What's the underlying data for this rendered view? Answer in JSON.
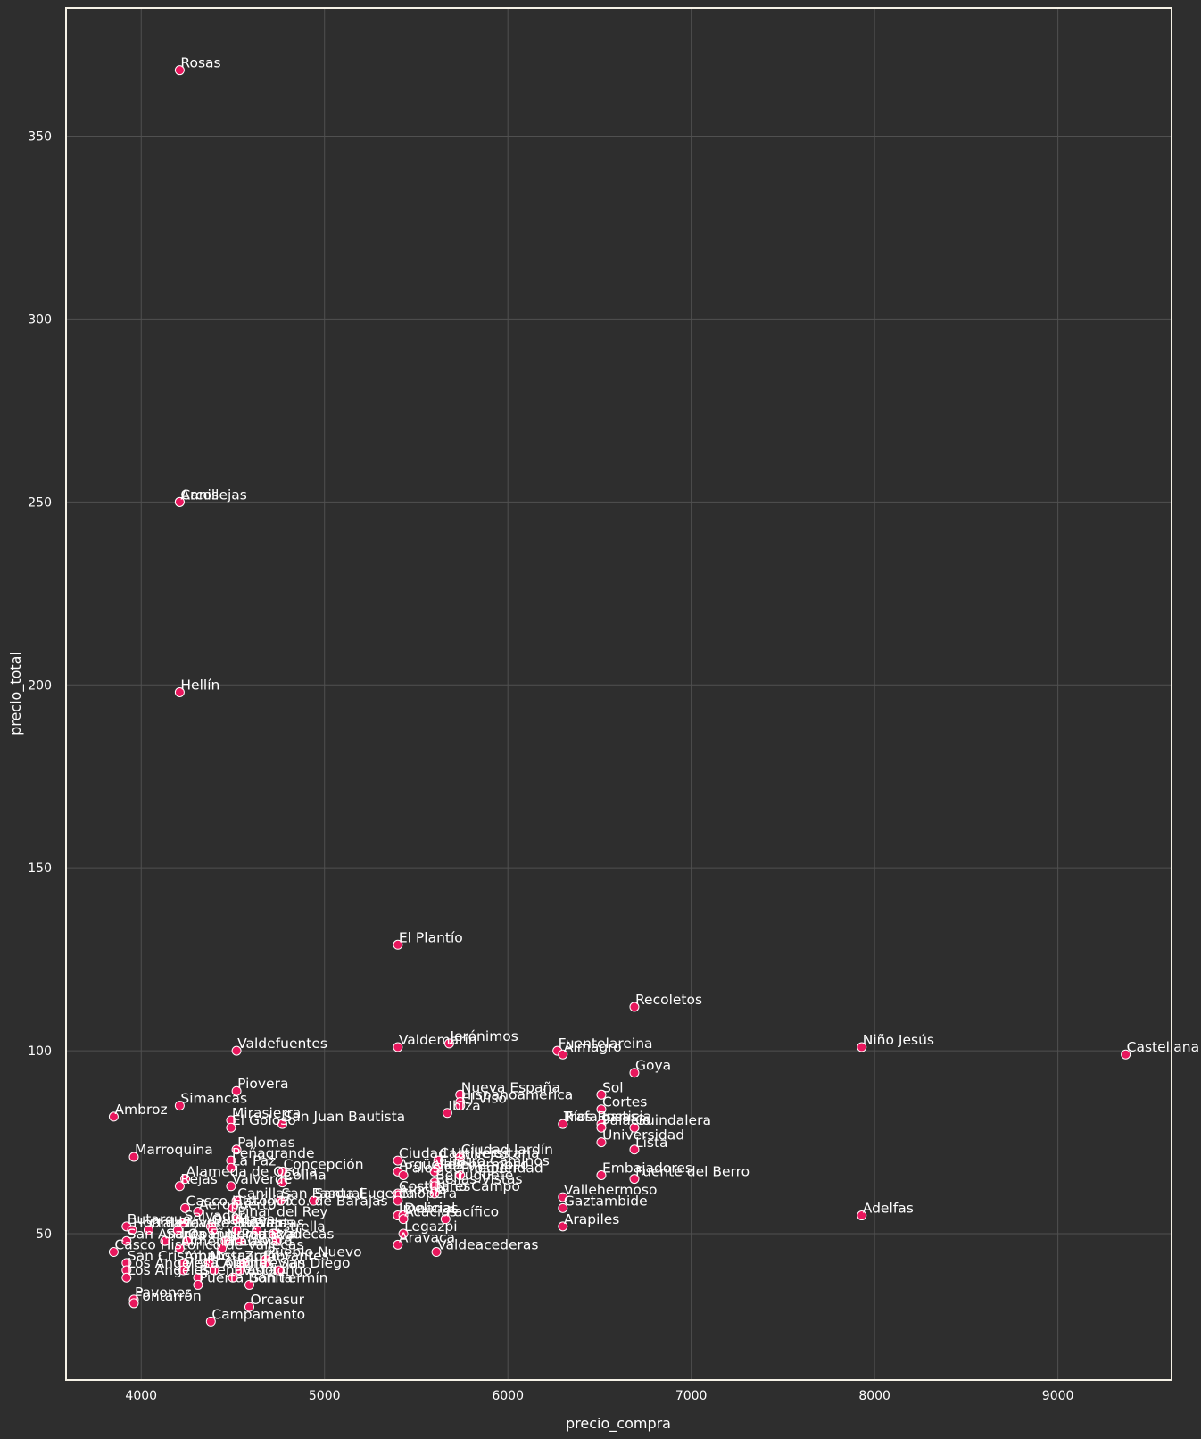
{
  "chart_data": {
    "type": "scatter",
    "title": "",
    "xlabel": "precio_compra",
    "ylabel": "precio_total",
    "xlim": [
      3590,
      9620
    ],
    "ylim": [
      10,
      385
    ],
    "xticks": [
      "4000",
      "5000",
      "6000",
      "7000",
      "8000",
      "9000"
    ],
    "yticks": [
      "50",
      "100",
      "150",
      "200",
      "250",
      "300",
      "350"
    ],
    "grid": true,
    "background": "#2e2e2e",
    "frame_color": "#f5f1e6",
    "grid_color": "#505050",
    "point_color": "#e8175d",
    "point_edge_color": "#ffffff",
    "label_color": "#ffffff",
    "points": [
      {
        "label": "Rosas",
        "x": 4210,
        "y": 368
      },
      {
        "label": "Canillejas",
        "x": 4210,
        "y": 250
      },
      {
        "label": "Arcos",
        "x": 4210,
        "y": 250
      },
      {
        "label": "Hellín",
        "x": 4210,
        "y": 198
      },
      {
        "label": "El Plantío",
        "x": 5400,
        "y": 129
      },
      {
        "label": "Recoletos",
        "x": 6690,
        "y": 112
      },
      {
        "label": "Castellana",
        "x": 9370,
        "y": 99
      },
      {
        "label": "Niño Jesús",
        "x": 7930,
        "y": 101
      },
      {
        "label": "Jerónimos",
        "x": 5680,
        "y": 102
      },
      {
        "label": "Valdemarín",
        "x": 5400,
        "y": 101
      },
      {
        "label": "Valdefuentes",
        "x": 4520,
        "y": 100
      },
      {
        "label": "Fuentelareina",
        "x": 6270,
        "y": 100
      },
      {
        "label": "Almagro",
        "x": 6300,
        "y": 99
      },
      {
        "label": "Goya",
        "x": 6690,
        "y": 94
      },
      {
        "label": "Piovera",
        "x": 4520,
        "y": 89
      },
      {
        "label": "Sol",
        "x": 6510,
        "y": 88
      },
      {
        "label": "Nueva España",
        "x": 5740,
        "y": 88
      },
      {
        "label": "Hispanoamérica",
        "x": 5740,
        "y": 86
      },
      {
        "label": "El Viso",
        "x": 5740,
        "y": 85
      },
      {
        "label": "Simancas",
        "x": 4210,
        "y": 85
      },
      {
        "label": "Cortes",
        "x": 6510,
        "y": 84
      },
      {
        "label": "Ibiza",
        "x": 5670,
        "y": 83
      },
      {
        "label": "Ambroz",
        "x": 3850,
        "y": 82
      },
      {
        "label": "Mirasierra",
        "x": 4490,
        "y": 81
      },
      {
        "label": "El Goloso",
        "x": 4490,
        "y": 79
      },
      {
        "label": "San Juan Bautista",
        "x": 4770,
        "y": 80
      },
      {
        "label": "Trafalgar",
        "x": 6300,
        "y": 80
      },
      {
        "label": "Ríos Rosas",
        "x": 6300,
        "y": 80
      },
      {
        "label": "Justicia",
        "x": 6510,
        "y": 80
      },
      {
        "label": "Palacio",
        "x": 6510,
        "y": 79
      },
      {
        "label": "Guindalera",
        "x": 6690,
        "y": 79
      },
      {
        "label": "Universidad",
        "x": 6510,
        "y": 75
      },
      {
        "label": "Lista",
        "x": 6690,
        "y": 73
      },
      {
        "label": "Palomas",
        "x": 4520,
        "y": 73
      },
      {
        "label": "Marroquina",
        "x": 3960,
        "y": 71
      },
      {
        "label": "Peñagrande",
        "x": 4490,
        "y": 70
      },
      {
        "label": "La Paz",
        "x": 4490,
        "y": 68
      },
      {
        "label": "Ciudad Jardín",
        "x": 5740,
        "y": 71
      },
      {
        "label": "Ciudad Universitaria",
        "x": 5400,
        "y": 70
      },
      {
        "label": "Castillejos",
        "x": 5620,
        "y": 70
      },
      {
        "label": "Cuatro Caminos",
        "x": 5620,
        "y": 68
      },
      {
        "label": "Concepción",
        "x": 4770,
        "y": 67
      },
      {
        "label": "Argüelles",
        "x": 5400,
        "y": 67
      },
      {
        "label": "Vallehermoso",
        "x": 5600,
        "y": 67
      },
      {
        "label": "Embajadores",
        "x": 6510,
        "y": 66
      },
      {
        "label": "Fuente del Berro",
        "x": 6690,
        "y": 65
      },
      {
        "label": "Palos de Moguer",
        "x": 5430,
        "y": 66
      },
      {
        "label": "Prosperidad",
        "x": 5740,
        "y": 66
      },
      {
        "label": "Berruguete",
        "x": 5600,
        "y": 64
      },
      {
        "label": "Alameda de Osuna",
        "x": 4240,
        "y": 65
      },
      {
        "label": "Colina",
        "x": 4770,
        "y": 64
      },
      {
        "label": "Bellas Vistas",
        "x": 5600,
        "y": 63
      },
      {
        "label": "Rejas",
        "x": 4210,
        "y": 63
      },
      {
        "label": "Valverde",
        "x": 4490,
        "y": 63
      },
      {
        "label": "Atocha",
        "x": 5400,
        "y": 60
      },
      {
        "label": "Costillares",
        "x": 5400,
        "y": 61
      },
      {
        "label": "Niño Campo",
        "x": 5600,
        "y": 61
      },
      {
        "label": "Vallehermoso",
        "x": 6300,
        "y": 60
      },
      {
        "label": "Santa Eugenia",
        "x": 4940,
        "y": 59
      },
      {
        "label": "Canillas",
        "x": 4520,
        "y": 59
      },
      {
        "label": "San Pascual",
        "x": 4760,
        "y": 59
      },
      {
        "label": "Chopera",
        "x": 5400,
        "y": 59
      },
      {
        "label": "Casco Histórico",
        "x": 4240,
        "y": 57
      },
      {
        "label": "Aeropuerto",
        "x": 4310,
        "y": 56
      },
      {
        "label": "Casco Hco. de Barajas",
        "x": 4500,
        "y": 57
      },
      {
        "label": "Gaztambide",
        "x": 6300,
        "y": 57
      },
      {
        "label": "Pinar del Rey",
        "x": 4520,
        "y": 54
      },
      {
        "label": "Imperial",
        "x": 5400,
        "y": 55
      },
      {
        "label": "Delicias",
        "x": 5430,
        "y": 55
      },
      {
        "label": "Acacias",
        "x": 5430,
        "y": 54
      },
      {
        "label": "Pacífico",
        "x": 5660,
        "y": 54
      },
      {
        "label": "Adelfas",
        "x": 7930,
        "y": 55
      },
      {
        "label": "Butarque",
        "x": 3920,
        "y": 52
      },
      {
        "label": "Salvador",
        "x": 4230,
        "y": 53
      },
      {
        "label": "Quintana",
        "x": 4380,
        "y": 52
      },
      {
        "label": "Arapiles",
        "x": 6300,
        "y": 52
      },
      {
        "label": "Legazpi",
        "x": 5430,
        "y": 50
      },
      {
        "label": "Hortaleza",
        "x": 3950,
        "y": 51
      },
      {
        "label": "Orcasitas",
        "x": 4040,
        "y": 51
      },
      {
        "label": "Piovera Baja",
        "x": 4200,
        "y": 51
      },
      {
        "label": "Los Rosales",
        "x": 4390,
        "y": 51
      },
      {
        "label": "El Pilar",
        "x": 4520,
        "y": 51
      },
      {
        "label": "Ventas",
        "x": 4630,
        "y": 51
      },
      {
        "label": "Estrella",
        "x": 4720,
        "y": 50
      },
      {
        "label": "San Andrés",
        "x": 3920,
        "y": 48
      },
      {
        "label": "Santa Eugenia B",
        "x": 4130,
        "y": 48
      },
      {
        "label": "Opañel",
        "x": 4250,
        "y": 48
      },
      {
        "label": "Numancia",
        "x": 4460,
        "y": 48
      },
      {
        "label": "Portazgo",
        "x": 4540,
        "y": 48
      },
      {
        "label": "Vallecas",
        "x": 4740,
        "y": 48
      },
      {
        "label": "Aravaca",
        "x": 5400,
        "y": 47
      },
      {
        "label": "Casco Histórico de Vallecas",
        "x": 3850,
        "y": 45
      },
      {
        "label": "Almendrales",
        "x": 4210,
        "y": 46
      },
      {
        "label": "El Calvaro",
        "x": 4440,
        "y": 46
      },
      {
        "label": "Valdeacederas",
        "x": 5610,
        "y": 45
      },
      {
        "label": "Pueblo Nuevo",
        "x": 4680,
        "y": 43
      },
      {
        "label": "San Cristóbal",
        "x": 3920,
        "y": 42
      },
      {
        "label": "Amposta",
        "x": 4230,
        "y": 42
      },
      {
        "label": "Moscardó",
        "x": 4370,
        "y": 42
      },
      {
        "label": "Zofío",
        "x": 4560,
        "y": 42
      },
      {
        "label": "Abrantes",
        "x": 4680,
        "y": 42
      },
      {
        "label": "Los Ángeles",
        "x": 3920,
        "y": 40
      },
      {
        "label": "Vista Alegre",
        "x": 4230,
        "y": 40
      },
      {
        "label": "Comillas",
        "x": 4400,
        "y": 40
      },
      {
        "label": "Entrevías",
        "x": 4540,
        "y": 40
      },
      {
        "label": "San Diego",
        "x": 4750,
        "y": 40
      },
      {
        "label": "Los Angeles",
        "x": 3920,
        "y": 38
      },
      {
        "label": "Buenavista",
        "x": 4310,
        "y": 38
      },
      {
        "label": "Pradolongo",
        "x": 4500,
        "y": 38
      },
      {
        "label": "San Fermín",
        "x": 4590,
        "y": 36
      },
      {
        "label": "Puerta Bonita",
        "x": 4310,
        "y": 36
      },
      {
        "label": "Pavones",
        "x": 3960,
        "y": 32
      },
      {
        "label": "Fontarrón",
        "x": 3960,
        "y": 31
      },
      {
        "label": "Orcasur",
        "x": 4590,
        "y": 30
      },
      {
        "label": "Campamento",
        "x": 4380,
        "y": 26
      }
    ]
  }
}
